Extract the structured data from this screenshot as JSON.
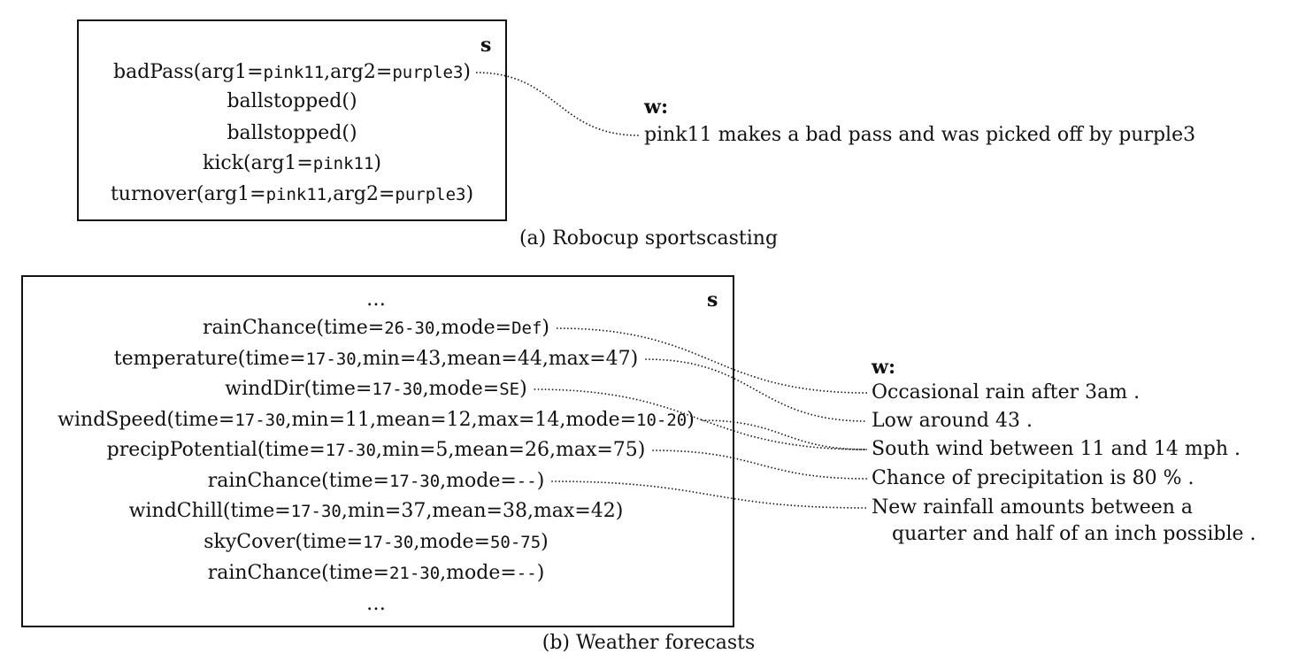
{
  "panel_a": {
    "s_label": "s",
    "lines": [
      [
        {
          "t": "badPass(arg1="
        },
        {
          "t": "pink11",
          "m": 1
        },
        {
          "t": ",arg2="
        },
        {
          "t": "purple3",
          "m": 1
        },
        {
          "t": ")"
        }
      ],
      [
        {
          "t": "ballstopped()"
        }
      ],
      [
        {
          "t": "ballstopped()"
        }
      ],
      [
        {
          "t": "kick(arg1="
        },
        {
          "t": "pink11",
          "m": 1
        },
        {
          "t": ")"
        }
      ],
      [
        {
          "t": "turnover(arg1="
        },
        {
          "t": "pink11",
          "m": 1
        },
        {
          "t": ",arg2="
        },
        {
          "t": "purple3",
          "m": 1
        },
        {
          "t": ")"
        }
      ]
    ],
    "w_label": "w:",
    "w_lines": [
      "pink11 makes a bad pass and was picked off by purple3"
    ],
    "caption": "(a) Robocup sportscasting"
  },
  "panel_b": {
    "s_label": "s",
    "top_ellipsis": "…",
    "bottom_ellipsis": "…",
    "lines": [
      [
        {
          "t": "rainChance(time="
        },
        {
          "t": "26-30",
          "m": 1
        },
        {
          "t": ",mode="
        },
        {
          "t": "Def",
          "m": 1
        },
        {
          "t": ")"
        }
      ],
      [
        {
          "t": "temperature(time="
        },
        {
          "t": "17-30",
          "m": 1
        },
        {
          "t": ",min=43,mean=44,max=47)"
        }
      ],
      [
        {
          "t": "windDir(time="
        },
        {
          "t": "17-30",
          "m": 1
        },
        {
          "t": ",mode="
        },
        {
          "t": "SE",
          "m": 1
        },
        {
          "t": ")"
        }
      ],
      [
        {
          "t": "windSpeed(time="
        },
        {
          "t": "17-30",
          "m": 1
        },
        {
          "t": ",min=11,mean=12,max=14,mode="
        },
        {
          "t": "10-20",
          "m": 1
        },
        {
          "t": ")"
        }
      ],
      [
        {
          "t": "precipPotential(time="
        },
        {
          "t": "17-30",
          "m": 1
        },
        {
          "t": ",min=5,mean=26,max=75)"
        }
      ],
      [
        {
          "t": "rainChance(time="
        },
        {
          "t": "17-30",
          "m": 1
        },
        {
          "t": ",mode="
        },
        {
          "t": "--",
          "m": 1
        },
        {
          "t": ")"
        }
      ],
      [
        {
          "t": "windChill(time="
        },
        {
          "t": "17-30",
          "m": 1
        },
        {
          "t": ",min=37,mean=38,max=42)"
        }
      ],
      [
        {
          "t": "skyCover(time="
        },
        {
          "t": "17-30",
          "m": 1
        },
        {
          "t": ",mode="
        },
        {
          "t": "50-75",
          "m": 1
        },
        {
          "t": ")"
        }
      ],
      [
        {
          "t": "rainChance(time="
        },
        {
          "t": "21-30",
          "m": 1
        },
        {
          "t": ",mode="
        },
        {
          "t": "--",
          "m": 1
        },
        {
          "t": ")"
        }
      ]
    ],
    "w_label": "w:",
    "w_lines": [
      "Occasional rain after 3am .",
      "Low around 43 .",
      "South wind between 11 and 14 mph .",
      "Chance of precipitation is 80 % .",
      "New rainfall amounts between a",
      "quarter and half of an inch possible ."
    ],
    "caption": "(b) Weather forecasts"
  },
  "alignments": {
    "a": [
      [
        0,
        0
      ]
    ],
    "b": [
      [
        0,
        0
      ],
      [
        1,
        1
      ],
      [
        2,
        2
      ],
      [
        3,
        2
      ],
      [
        4,
        3
      ],
      [
        5,
        4
      ]
    ]
  }
}
